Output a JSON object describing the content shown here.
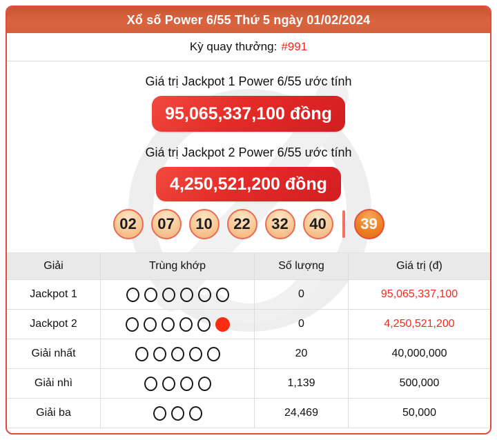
{
  "header": {
    "title": "Xổ số Power 6/55 Thứ 5 ngày 01/02/2024"
  },
  "draw": {
    "label": "Kỳ quay thưởng:",
    "number": "#991"
  },
  "jackpot1": {
    "caption": "Giá trị Jackpot 1 Power 6/55 ước tính",
    "amount": "95,065,337,100 đồng"
  },
  "jackpot2": {
    "caption": "Giá trị Jackpot 2 Power 6/55 ước tính",
    "amount": "4,250,521,200 đồng"
  },
  "numbers": {
    "main": [
      "02",
      "07",
      "10",
      "22",
      "32",
      "40"
    ],
    "power": "39"
  },
  "table": {
    "headers": [
      "Giải",
      "Trùng khớp",
      "Số lượng",
      "Giá trị (đ)"
    ],
    "rows": [
      {
        "prize": "Jackpot 1",
        "match_open": 6,
        "match_power": false,
        "count": "0",
        "value": "95,065,337,100",
        "value_red": true
      },
      {
        "prize": "Jackpot 2",
        "match_open": 5,
        "match_power": true,
        "count": "0",
        "value": "4,250,521,200",
        "value_red": true
      },
      {
        "prize": "Giải nhất",
        "match_open": 5,
        "match_power": false,
        "count": "20",
        "value": "40,000,000",
        "value_red": false
      },
      {
        "prize": "Giải nhì",
        "match_open": 4,
        "match_power": false,
        "count": "1,139",
        "value": "500,000",
        "value_red": false
      },
      {
        "prize": "Giải ba",
        "match_open": 3,
        "match_power": false,
        "count": "24,469",
        "value": "50,000",
        "value_red": false
      }
    ]
  },
  "colors": {
    "card_border": "#e8473c",
    "header_bg": "#d5613c",
    "accent_red": "#f5291c",
    "pill_red": "#e32b28",
    "ball_border": "#e96a55",
    "power_ball": "#e8731d"
  }
}
